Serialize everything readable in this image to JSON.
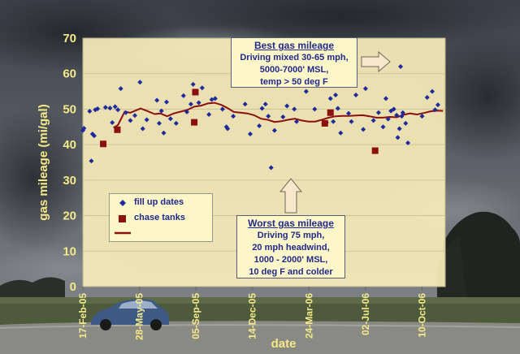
{
  "chart_data": {
    "type": "scatter",
    "title": "",
    "xlabel": "date",
    "ylabel": "gas mileage (mi/gal)",
    "ylim": [
      0,
      70
    ],
    "y_ticks": [
      0,
      10,
      20,
      30,
      40,
      50,
      60,
      70
    ],
    "x_ticks": [
      "17-Feb-05",
      "28-May-05",
      "05-Sep-05",
      "14-Dec-05",
      "24-Mar-06",
      "02-Jul-06",
      "10-Oct-06"
    ],
    "xlim": [
      "2005-02-17",
      "2006-11-20"
    ],
    "grid": "horizontal",
    "legend_position": "lower-left",
    "series": [
      {
        "name": "fill up dates",
        "kind": "points",
        "color": "#1f2a9c",
        "points": [
          [
            "2005-02-17",
            44.0
          ],
          [
            "2005-02-19",
            44.6
          ],
          [
            "2005-03-01",
            49.4
          ],
          [
            "2005-03-04",
            35.4
          ],
          [
            "2005-03-06",
            43.0
          ],
          [
            "2005-03-09",
            42.5
          ],
          [
            "2005-03-11",
            49.8
          ],
          [
            "2005-03-15",
            50.1
          ],
          [
            "2005-03-29",
            50.5
          ],
          [
            "2005-04-06",
            50.3
          ],
          [
            "2005-04-10",
            46.2
          ],
          [
            "2005-04-15",
            50.7
          ],
          [
            "2005-04-20",
            49.8
          ],
          [
            "2005-04-25",
            55.8
          ],
          [
            "2005-05-04",
            49.0
          ],
          [
            "2005-05-12",
            46.8
          ],
          [
            "2005-05-20",
            48.2
          ],
          [
            "2005-05-29",
            57.6
          ],
          [
            "2005-06-03",
            44.5
          ],
          [
            "2005-06-10",
            47.0
          ],
          [
            "2005-06-28",
            52.5
          ],
          [
            "2005-07-02",
            46.0
          ],
          [
            "2005-07-06",
            49.5
          ],
          [
            "2005-07-10",
            43.3
          ],
          [
            "2005-07-15",
            52.0
          ],
          [
            "2005-07-22",
            47.3
          ],
          [
            "2005-08-01",
            46.0
          ],
          [
            "2005-08-14",
            53.8
          ],
          [
            "2005-08-20",
            49.2
          ],
          [
            "2005-08-27",
            51.4
          ],
          [
            "2005-08-31",
            57.0
          ],
          [
            "2005-09-10",
            51.8
          ],
          [
            "2005-09-16",
            56.0
          ],
          [
            "2005-09-28",
            48.5
          ],
          [
            "2005-10-03",
            52.7
          ],
          [
            "2005-10-09",
            53.0
          ],
          [
            "2005-10-22",
            50.0
          ],
          [
            "2005-10-29",
            45.0
          ],
          [
            "2005-10-31",
            44.5
          ],
          [
            "2005-11-10",
            48.0
          ],
          [
            "2005-12-01",
            51.4
          ],
          [
            "2005-12-10",
            43.0
          ],
          [
            "2005-12-26",
            45.3
          ],
          [
            "2005-12-31",
            50.2
          ],
          [
            "2006-01-06",
            51.4
          ],
          [
            "2006-01-11",
            48.0
          ],
          [
            "2006-01-16",
            33.5
          ],
          [
            "2006-01-22",
            44.0
          ],
          [
            "2006-02-06",
            47.8
          ],
          [
            "2006-02-13",
            50.9
          ],
          [
            "2006-02-26",
            50.0
          ],
          [
            "2006-03-02",
            46.5
          ],
          [
            "2006-03-19",
            55.0
          ],
          [
            "2006-04-03",
            50.0
          ],
          [
            "2006-04-19",
            46.0
          ],
          [
            "2006-04-24",
            46.2
          ],
          [
            "2006-05-01",
            53.0
          ],
          [
            "2006-05-06",
            46.5
          ],
          [
            "2006-05-10",
            54.0
          ],
          [
            "2006-05-14",
            50.2
          ],
          [
            "2006-05-19",
            43.3
          ],
          [
            "2006-06-02",
            48.8
          ],
          [
            "2006-06-07",
            46.5
          ],
          [
            "2006-06-15",
            54.0
          ],
          [
            "2006-06-28",
            44.3
          ],
          [
            "2006-07-02",
            55.8
          ],
          [
            "2006-07-16",
            46.8
          ],
          [
            "2006-07-25",
            49.0
          ],
          [
            "2006-08-02",
            45.0
          ],
          [
            "2006-08-07",
            53.0
          ],
          [
            "2006-08-11",
            47.2
          ],
          [
            "2006-08-16",
            49.5
          ],
          [
            "2006-08-21",
            50.0
          ],
          [
            "2006-08-26",
            48.3
          ],
          [
            "2006-08-28",
            42.0
          ],
          [
            "2006-08-31",
            44.5
          ],
          [
            "2006-09-02",
            62.0
          ],
          [
            "2006-09-04",
            48.0
          ],
          [
            "2006-09-06",
            49.0
          ],
          [
            "2006-09-11",
            46.0
          ],
          [
            "2006-09-15",
            40.5
          ],
          [
            "2006-10-10",
            48.0
          ],
          [
            "2006-10-19",
            53.3
          ],
          [
            "2006-10-28",
            55.0
          ],
          [
            "2006-11-02",
            49.8
          ],
          [
            "2006-11-07",
            51.2
          ]
        ]
      },
      {
        "name": "chase tanks",
        "kind": "points",
        "color": "#8b1010",
        "points": [
          [
            "2005-03-25",
            40.2
          ],
          [
            "2005-04-19",
            44.2
          ],
          [
            "2005-09-04",
            54.8
          ],
          [
            "2005-09-02",
            46.3
          ],
          [
            "2006-04-21",
            46.0
          ],
          [
            "2006-05-01",
            49.0
          ],
          [
            "2006-07-19",
            38.3
          ]
        ]
      },
      {
        "name": "",
        "kind": "line",
        "color": "#8b1010",
        "points": [
          [
            "2005-04-12",
            44.8
          ],
          [
            "2005-04-20",
            45.5
          ],
          [
            "2005-05-02",
            49.3
          ],
          [
            "2005-05-12",
            49.0
          ],
          [
            "2005-05-20",
            49.5
          ],
          [
            "2005-05-30",
            50.2
          ],
          [
            "2005-06-09",
            49.6
          ],
          [
            "2005-06-24",
            48.6
          ],
          [
            "2005-07-04",
            48.8
          ],
          [
            "2005-07-16",
            48.0
          ],
          [
            "2005-07-28",
            48.8
          ],
          [
            "2005-08-09",
            49.3
          ],
          [
            "2005-08-21",
            49.8
          ],
          [
            "2005-09-02",
            50.7
          ],
          [
            "2005-09-14",
            51.0
          ],
          [
            "2005-09-26",
            51.6
          ],
          [
            "2005-10-08",
            51.8
          ],
          [
            "2005-10-20",
            51.2
          ],
          [
            "2005-10-30",
            50.4
          ],
          [
            "2005-11-11",
            49.2
          ],
          [
            "2005-11-23",
            49.0
          ],
          [
            "2005-12-05",
            48.8
          ],
          [
            "2005-12-17",
            48.3
          ],
          [
            "2005-12-29",
            47.3
          ],
          [
            "2006-01-10",
            47.0
          ],
          [
            "2006-01-22",
            46.4
          ],
          [
            "2006-02-03",
            46.6
          ],
          [
            "2006-02-15",
            47.0
          ],
          [
            "2006-02-27",
            47.3
          ],
          [
            "2006-03-11",
            46.8
          ],
          [
            "2006-03-23",
            46.5
          ],
          [
            "2006-04-04",
            46.5
          ],
          [
            "2006-04-16",
            47.0
          ],
          [
            "2006-04-28",
            47.6
          ],
          [
            "2006-05-10",
            48.0
          ],
          [
            "2006-05-22",
            48.1
          ],
          [
            "2006-06-03",
            48.1
          ],
          [
            "2006-06-15",
            48.2
          ],
          [
            "2006-06-27",
            48.3
          ],
          [
            "2006-07-09",
            48.0
          ],
          [
            "2006-07-21",
            47.6
          ],
          [
            "2006-08-02",
            47.6
          ],
          [
            "2006-08-14",
            47.8
          ],
          [
            "2006-08-26",
            47.7
          ],
          [
            "2006-09-07",
            48.4
          ],
          [
            "2006-09-19",
            48.8
          ],
          [
            "2006-10-01",
            48.5
          ],
          [
            "2006-10-13",
            48.9
          ],
          [
            "2006-10-25",
            49.4
          ],
          [
            "2006-11-06",
            49.6
          ],
          [
            "2006-11-16",
            49.5
          ]
        ]
      }
    ],
    "annotations": [
      {
        "title": "Best gas mileage",
        "lines": [
          "Driving mixed 30-65 mph,",
          "5000-7000' MSL,",
          "temp > 50 deg F"
        ]
      },
      {
        "title": "Worst gas mileage",
        "lines": [
          "Driving 75 mph,",
          "20 mph headwind,",
          "1000 - 2000' MSL,",
          "10 deg F and colder"
        ]
      }
    ]
  },
  "colors": {
    "plot_bg": "#f6ebb8",
    "axis_text": "#f4e98a",
    "point_blue": "#1f2a9c",
    "chase_red": "#8b1010",
    "annotation_text": "#1f2a8c"
  }
}
